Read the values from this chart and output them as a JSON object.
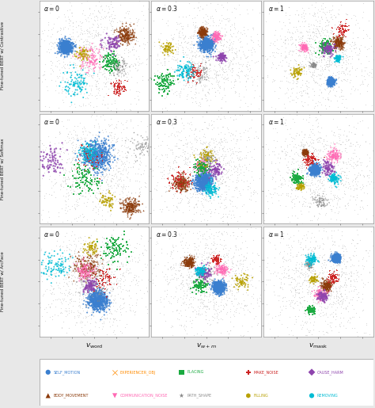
{
  "figsize": [
    4.74,
    5.15
  ],
  "dpi": 100,
  "row_labels": [
    "Fine-tuned BERT w/ Contrastive",
    "Fine-tuned BERT w/ Softmax",
    "Fine-tuned BERT w/ ArcFace"
  ],
  "alpha_values": [
    0,
    0.3,
    1
  ],
  "x_labels": [
    "v_word",
    "v_{w+m}",
    "v_mask"
  ],
  "bg_color": "#e8e8e8",
  "categories": [
    {
      "name": "Self_motion",
      "color": "#3a7fcf",
      "marker": "o",
      "size": 2.0
    },
    {
      "name": "Body_movement",
      "color": "#8B3A0A",
      "marker": "^",
      "size": 2.5
    },
    {
      "name": "Experiencer_obj",
      "color": "#FF8C00",
      "marker": "x",
      "size": 3.0
    },
    {
      "name": "Communication_noise",
      "color": "#FF69B4",
      "marker": "v",
      "size": 2.5
    },
    {
      "name": "Placing",
      "color": "#1aaa40",
      "marker": "s",
      "size": 2.0
    },
    {
      "name": "Path_shape",
      "color": "#888888",
      "marker": "*",
      "size": 3.0
    },
    {
      "name": "Make_noise",
      "color": "#cc2222",
      "marker": "P",
      "size": 2.5
    },
    {
      "name": "Filling",
      "color": "#b8a000",
      "marker": "h",
      "size": 2.5
    },
    {
      "name": "Cause_harm",
      "color": "#8e44ad",
      "marker": "D",
      "size": 2.0
    },
    {
      "name": "Removing",
      "color": "#00bcd4",
      "marker": "o",
      "size": 2.0
    }
  ],
  "n_points": [
    600,
    200,
    250,
    120,
    100,
    80,
    70,
    60,
    80,
    100
  ],
  "n_background": 1000,
  "legend_row1": [
    {
      "name": "Self_motion",
      "color": "#3a7fcf",
      "marker": "o"
    },
    {
      "name": "Experiencer_obj",
      "color": "#FF8C00",
      "marker": "x"
    },
    {
      "name": "Placing",
      "color": "#1aaa40",
      "marker": "s"
    },
    {
      "name": "Make_noise",
      "color": "#cc2222",
      "marker": "P"
    },
    {
      "name": "Cause_harm",
      "color": "#8e44ad",
      "marker": "D"
    }
  ],
  "legend_row2": [
    {
      "name": "Body_movement",
      "color": "#8B3A0A",
      "marker": "^"
    },
    {
      "name": "Communication_noise",
      "color": "#FF69B4",
      "marker": "v"
    },
    {
      "name": "Path_shape",
      "color": "#888888",
      "marker": "*"
    },
    {
      "name": "Filling",
      "color": "#b8a000",
      "marker": "h"
    },
    {
      "name": "Removing",
      "color": "#00bcd4",
      "marker": "o"
    }
  ]
}
